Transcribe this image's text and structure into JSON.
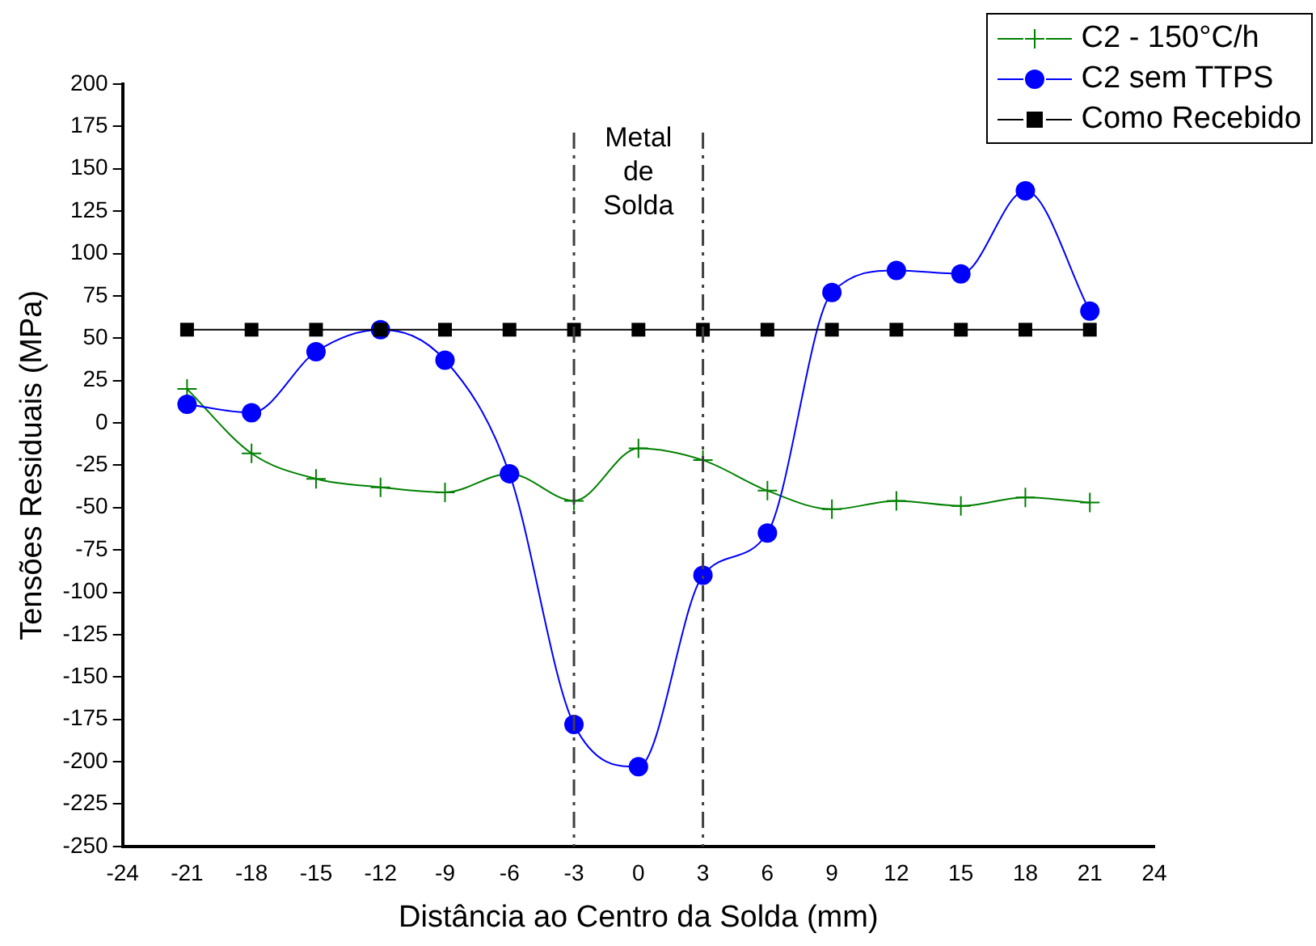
{
  "chart_data": {
    "type": "line",
    "xlabel": "Distância ao Centro da Solda (mm)",
    "ylabel": "Tensões Residuais (MPa)",
    "x": [
      -21,
      -18,
      -15,
      -12,
      -9,
      -6,
      -3,
      0,
      3,
      6,
      9,
      12,
      15,
      18,
      21
    ],
    "series": [
      {
        "name": "C2 - 150°C/h",
        "color": "#008000",
        "marker": "cross",
        "values": [
          20,
          -18,
          -33,
          -38,
          -41,
          -30,
          -46,
          -15,
          -22,
          -40,
          -51,
          -46,
          -49,
          -44,
          -47
        ]
      },
      {
        "name": "C2 sem TTPS",
        "color": "#0000ff",
        "marker": "circle",
        "values": [
          11,
          6,
          42,
          55,
          37,
          -30,
          -178,
          -203,
          -90,
          -65,
          77,
          90,
          88,
          137,
          66
        ]
      },
      {
        "name": "Como Recebido",
        "color": "#000000",
        "marker": "square",
        "values": [
          55,
          55,
          55,
          55,
          55,
          55,
          55,
          55,
          55,
          55,
          55,
          55,
          55,
          55,
          55
        ]
      }
    ],
    "xlim": [
      -24,
      24
    ],
    "xticks": [
      -24,
      -21,
      -18,
      -15,
      -12,
      -9,
      -6,
      -3,
      0,
      3,
      6,
      9,
      12,
      15,
      18,
      21,
      24
    ],
    "ylim": [
      -250,
      200
    ],
    "yticks": [
      -250,
      -225,
      -200,
      -175,
      -150,
      -125,
      -100,
      -75,
      -50,
      -25,
      0,
      25,
      50,
      75,
      100,
      125,
      150,
      175,
      200
    ],
    "ref_lines": [
      {
        "axis": "x",
        "value": -3,
        "color": "#404040",
        "line_style": "dashdot"
      },
      {
        "axis": "x",
        "value": 3,
        "color": "#404040",
        "line_style": "dashdot"
      }
    ],
    "annotations": [
      "Metal de Solda"
    ],
    "grid": false,
    "legend": "top right",
    "line_style": "solid"
  }
}
